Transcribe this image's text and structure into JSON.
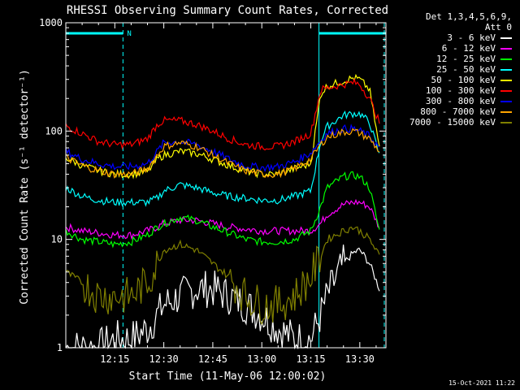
{
  "chart_data": {
    "type": "line",
    "title": "RHESSI Observing Summary Count Rates, Corrected",
    "xlabel": "Start Time (11-May-06 12:00:02)",
    "ylabel": "Corrected Count Rate (s⁻¹ detector⁻¹)",
    "x_unit": "minutes",
    "xlim": [
      0,
      98
    ],
    "ylim": [
      1,
      1000
    ],
    "yscale": "log",
    "x_ticks": [
      {
        "value": 15,
        "label": "12:15"
      },
      {
        "value": 30,
        "label": "12:30"
      },
      {
        "value": 45,
        "label": "12:45"
      },
      {
        "value": 60,
        "label": "13:00"
      },
      {
        "value": 75,
        "label": "13:15"
      },
      {
        "value": 90,
        "label": "13:30"
      }
    ],
    "y_ticks": [
      {
        "value": 1,
        "label": "1"
      },
      {
        "value": 10,
        "label": "10"
      },
      {
        "value": 100,
        "label": "100"
      },
      {
        "value": 1000,
        "label": "1000"
      }
    ],
    "annotations": {
      "detectors": "Det 1,3,4,5,6,9,",
      "attenuator": "Att 0",
      "night_marker": "N",
      "timestamp": "15-Oct-2021 11:22"
    },
    "night_bands": [
      [
        0,
        17.5
      ],
      [
        77.5,
        98
      ]
    ],
    "day_boundaries": [
      17.5,
      77.5,
      97.5
    ],
    "x": [
      0,
      5,
      10,
      15,
      20,
      25,
      28,
      30,
      35,
      40,
      45,
      50,
      55,
      60,
      65,
      70,
      75,
      78,
      80,
      85,
      88,
      90,
      93,
      96
    ],
    "series": [
      {
        "name": "3 - 6 keV",
        "color": "#ffffff",
        "values": [
          1.0,
          1.0,
          1.0,
          1.2,
          1.2,
          1.5,
          2.0,
          2.5,
          3.0,
          3.5,
          3.5,
          3.0,
          2.5,
          2.0,
          1.5,
          1.2,
          1.2,
          2.0,
          3.0,
          6.0,
          7.5,
          8.0,
          6.0,
          3.5
        ]
      },
      {
        "name": "6 - 12 keV",
        "color": "#ff00ff",
        "values": [
          13,
          12,
          11.5,
          11,
          11,
          12,
          13,
          14,
          15,
          15,
          14,
          13,
          12.5,
          12,
          12,
          12,
          12,
          14,
          17,
          21,
          22,
          22,
          20,
          13
        ]
      },
      {
        "name": "12 - 25 keV",
        "color": "#00ff00",
        "values": [
          12,
          10,
          9.5,
          9,
          9.5,
          11,
          13,
          14,
          16,
          15,
          13,
          11.5,
          10,
          9.5,
          9.5,
          10,
          12,
          20,
          30,
          38,
          39,
          38,
          30,
          12
        ]
      },
      {
        "name": "25 - 50 keV",
        "color": "#00ffff",
        "values": [
          30,
          25,
          23,
          22,
          22,
          22,
          24,
          28,
          32,
          30,
          27,
          25,
          24,
          23,
          23,
          25,
          28,
          80,
          110,
          140,
          145,
          145,
          120,
          60
        ]
      },
      {
        "name": "50 - 100 keV",
        "color": "#ffff00",
        "values": [
          57,
          48,
          43,
          40,
          40,
          42,
          55,
          60,
          65,
          62,
          55,
          48,
          43,
          40,
          40,
          45,
          50,
          220,
          260,
          290,
          310,
          300,
          240,
          70
        ]
      },
      {
        "name": "100 - 300 keV",
        "color": "#ff0000",
        "values": [
          112,
          95,
          80,
          75,
          75,
          85,
          115,
          125,
          125,
          115,
          100,
          85,
          75,
          72,
          72,
          80,
          95,
          240,
          250,
          270,
          280,
          270,
          200,
          120
        ]
      },
      {
        "name": "300 - 800 keV",
        "color": "#0000ff",
        "values": [
          65,
          55,
          50,
          47,
          47,
          50,
          65,
          78,
          80,
          75,
          65,
          55,
          48,
          46,
          47,
          52,
          63,
          82,
          95,
          105,
          105,
          100,
          90,
          70
        ]
      },
      {
        "name": "800 - 7000 keV",
        "color": "#ffa500",
        "values": [
          57,
          48,
          43,
          40,
          40,
          45,
          60,
          72,
          78,
          72,
          60,
          50,
          43,
          40,
          40,
          45,
          55,
          75,
          88,
          98,
          100,
          95,
          85,
          65
        ]
      },
      {
        "name": "7000 - 15000 keV",
        "color": "#808000",
        "values": [
          5.0,
          4.0,
          3.0,
          3.0,
          3.0,
          4.0,
          6.0,
          8.0,
          9.0,
          8.0,
          6.0,
          4.5,
          3.0,
          2.5,
          2.5,
          3.0,
          4.5,
          7.0,
          10,
          12,
          13,
          12,
          10,
          7.0
        ]
      }
    ]
  }
}
